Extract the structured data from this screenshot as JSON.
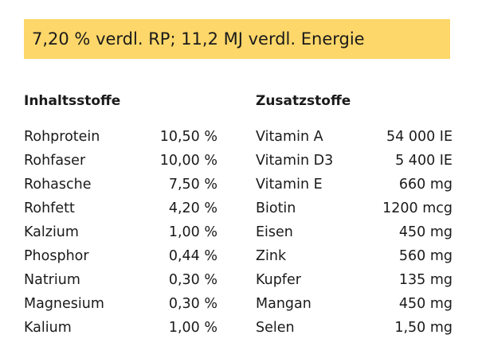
{
  "banner": {
    "text": "7,20 % verdl. RP; 11,2 MJ verdl. Energie",
    "color": "#fdd76a"
  },
  "left": {
    "heading": "Inhaltsstoffe",
    "rows": [
      {
        "name": "Rohprotein",
        "value": "10,50 %"
      },
      {
        "name": "Rohfaser",
        "value": "10,00 %"
      },
      {
        "name": "Rohasche",
        "value": "7,50 %"
      },
      {
        "name": "Rohfett",
        "value": "4,20 %"
      },
      {
        "name": "Kalzium",
        "value": "1,00 %"
      },
      {
        "name": "Phosphor",
        "value": "0,44 %"
      },
      {
        "name": "Natrium",
        "value": "0,30 %"
      },
      {
        "name": "Magnesium",
        "value": "0,30 %"
      },
      {
        "name": "Kalium",
        "value": "1,00 %"
      }
    ]
  },
  "right": {
    "heading": "Zusatzstoffe",
    "rows": [
      {
        "name": "Vitamin A",
        "value": "54 000 IE"
      },
      {
        "name": "Vitamin D3",
        "value": "5 400 IE"
      },
      {
        "name": "Vitamin E",
        "value": "660 mg"
      },
      {
        "name": "Biotin",
        "value": "1200 mcg"
      },
      {
        "name": "Eisen",
        "value": "450 mg"
      },
      {
        "name": "Zink",
        "value": "560 mg"
      },
      {
        "name": "Kupfer",
        "value": "135 mg"
      },
      {
        "name": "Mangan",
        "value": "450 mg"
      },
      {
        "name": "Selen",
        "value": "1,50 mg"
      }
    ]
  }
}
